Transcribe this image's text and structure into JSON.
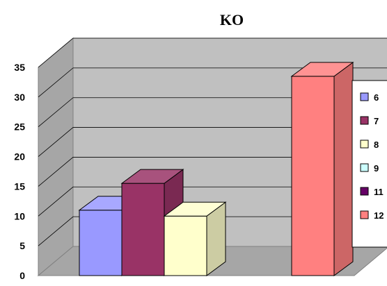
{
  "chart_data": {
    "type": "bar",
    "title": "KO",
    "xlabel": "",
    "ylabel": "",
    "ylim": [
      0,
      35
    ],
    "yticks": [
      0,
      5,
      10,
      15,
      20,
      25,
      30,
      35
    ],
    "grid": true,
    "legend_position": "right",
    "series": [
      {
        "name": "6",
        "value": 11,
        "color": "#9999ff"
      },
      {
        "name": "7",
        "value": 15.5,
        "color": "#993366"
      },
      {
        "name": "8",
        "value": 10,
        "color": "#ffffcc"
      },
      {
        "name": "9",
        "value": 0,
        "color": "#ccffff"
      },
      {
        "name": "11",
        "value": 0,
        "color": "#660066"
      },
      {
        "name": "12",
        "value": 33.5,
        "color": "#ff8080"
      }
    ]
  }
}
